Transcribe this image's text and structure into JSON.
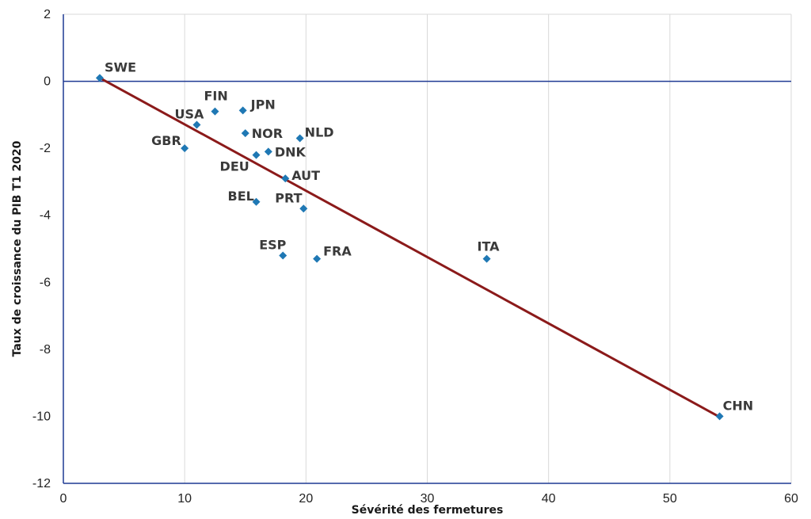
{
  "chart_data": {
    "type": "scatter",
    "title": "",
    "xlabel": "Sévérité des fermetures",
    "ylabel": "Taux de croissance du PIB   T1 2020",
    "xlim": [
      0,
      60
    ],
    "ylim": [
      -12,
      2
    ],
    "x_ticks": [
      0,
      10,
      20,
      30,
      40,
      50,
      60
    ],
    "y_ticks": [
      2,
      0,
      -2,
      -4,
      -6,
      -8,
      -10,
      -12
    ],
    "grid": "vertical",
    "legend": "none",
    "colors": {
      "points": "#1f78b4",
      "trendline": "#8b1a1a",
      "zero_line": "#1f3a93",
      "grid": "#d9d9d9",
      "axis": "#1f3a93"
    },
    "points": [
      {
        "label": "SWE",
        "x": 3,
        "y": 0.1
      },
      {
        "label": "FIN",
        "x": 12.5,
        "y": -0.9
      },
      {
        "label": "JPN",
        "x": 14.8,
        "y": -0.87
      },
      {
        "label": "USA",
        "x": 11,
        "y": -1.3
      },
      {
        "label": "NOR",
        "x": 15,
        "y": -1.55
      },
      {
        "label": "NLD",
        "x": 19.5,
        "y": -1.7
      },
      {
        "label": "GBR",
        "x": 10,
        "y": -2.0
      },
      {
        "label": "DNK",
        "x": 16.9,
        "y": -2.1
      },
      {
        "label": "DEU",
        "x": 15.9,
        "y": -2.2
      },
      {
        "label": "AUT",
        "x": 18.3,
        "y": -2.9
      },
      {
        "label": "BEL",
        "x": 15.9,
        "y": -3.6
      },
      {
        "label": "PRT",
        "x": 19.8,
        "y": -3.8
      },
      {
        "label": "ESP",
        "x": 18.1,
        "y": -5.2
      },
      {
        "label": "FRA",
        "x": 20.9,
        "y": -5.3
      },
      {
        "label": "ITA",
        "x": 34.9,
        "y": -5.3
      },
      {
        "label": "CHN",
        "x": 54.1,
        "y": -10.0
      }
    ],
    "trendline": {
      "x": [
        3,
        54
      ],
      "y": [
        0.1,
        -10.0
      ]
    }
  }
}
